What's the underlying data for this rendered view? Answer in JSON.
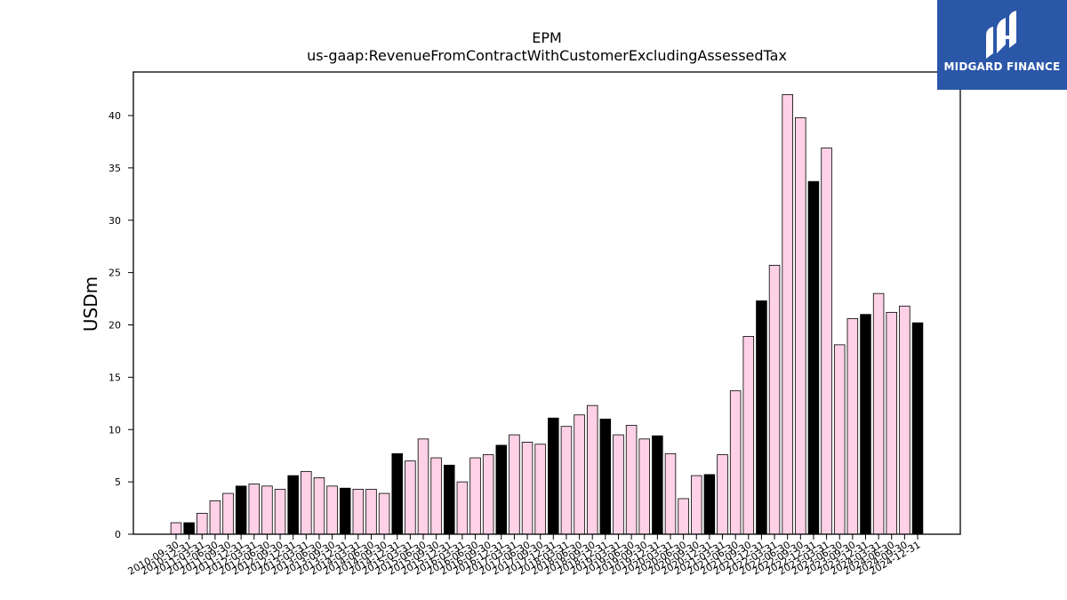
{
  "logo": {
    "text": "MIDGARD FINANCE",
    "bg_color": "#2b57a8"
  },
  "chart_data": {
    "type": "bar",
    "title": "EPM",
    "subtitle": "us-gaap:RevenueFromContractWithCustomerExcludingAssessedTax",
    "xlabel": "",
    "ylabel": "USDm",
    "ylim": [
      0,
      44
    ],
    "yticks": [
      0,
      5,
      10,
      15,
      20,
      25,
      30,
      35,
      40
    ],
    "grid": false,
    "colors": {
      "quarter": "#ffd1e6",
      "fiscal_year_end": "#000000",
      "edge": "#000000"
    },
    "categories": [
      "2010-09-30",
      "2010-12-31",
      "2011-03-31",
      "2011-06-30",
      "2011-09-30",
      "2011-12-31",
      "2012-03-31",
      "2012-06-30",
      "2012-09-30",
      "2012-12-31",
      "2013-03-31",
      "2013-06-30",
      "2013-09-30",
      "2013-12-31",
      "2014-03-31",
      "2014-06-30",
      "2014-09-30",
      "2014-12-31",
      "2015-03-31",
      "2015-06-30",
      "2015-09-30",
      "2015-12-31",
      "2016-03-31",
      "2016-06-30",
      "2016-09-30",
      "2016-12-31",
      "2017-03-31",
      "2017-06-30",
      "2017-09-30",
      "2017-12-31",
      "2018-03-31",
      "2018-06-30",
      "2018-09-30",
      "2018-12-31",
      "2019-03-31",
      "2019-06-30",
      "2019-09-30",
      "2019-12-31",
      "2020-03-31",
      "2020-06-30",
      "2020-09-30",
      "2020-12-31",
      "2021-03-31",
      "2021-06-30",
      "2021-09-30",
      "2021-12-31",
      "2022-03-31",
      "2022-06-30",
      "2022-09-30",
      "2022-12-31",
      "2023-03-31",
      "2023-06-30",
      "2023-09-30",
      "2023-12-31",
      "2024-03-31",
      "2024-06-30",
      "2024-09-30",
      "2024-12-31"
    ],
    "values": [
      1.1,
      1.1,
      2.0,
      3.2,
      3.9,
      4.6,
      4.8,
      4.6,
      4.3,
      5.6,
      6.0,
      5.4,
      4.6,
      4.4,
      4.3,
      4.3,
      3.9,
      7.7,
      7.0,
      9.1,
      7.3,
      6.6,
      5.0,
      7.3,
      7.6,
      8.5,
      9.5,
      8.8,
      8.6,
      11.1,
      10.3,
      11.4,
      12.3,
      11.0,
      9.5,
      10.4,
      9.1,
      9.4,
      7.7,
      3.4,
      5.6,
      5.7,
      7.6,
      13.7,
      18.9,
      22.3,
      25.7,
      42.0,
      39.8,
      33.7,
      36.9,
      18.1,
      20.6,
      21.0,
      23.0,
      21.2,
      21.8,
      20.2
    ],
    "fiscal_year_end": [
      false,
      true,
      false,
      false,
      false,
      true,
      false,
      false,
      false,
      true,
      false,
      false,
      false,
      true,
      false,
      false,
      false,
      true,
      false,
      false,
      false,
      true,
      false,
      false,
      false,
      true,
      false,
      false,
      false,
      true,
      false,
      false,
      false,
      true,
      false,
      false,
      false,
      true,
      false,
      false,
      false,
      true,
      false,
      false,
      false,
      true,
      false,
      false,
      false,
      true,
      false,
      false,
      false,
      true,
      false,
      false,
      false,
      true
    ]
  }
}
